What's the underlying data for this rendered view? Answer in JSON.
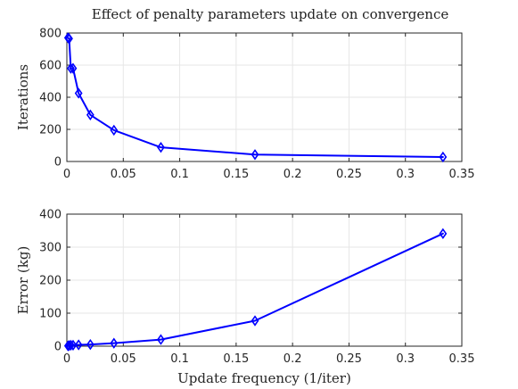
{
  "figure": {
    "title": "Effect of penalty parameters update on convergence"
  },
  "chart_data": [
    {
      "type": "line",
      "title": "Effect of penalty parameters update on convergence",
      "xlabel": "",
      "ylabel": "Iterations",
      "xlim": [
        0,
        0.35
      ],
      "ylim": [
        0,
        800
      ],
      "x_ticks": [
        0,
        0.05,
        0.1,
        0.15,
        0.2,
        0.25,
        0.3,
        0.35
      ],
      "x_tick_labels": [
        "0",
        "0.05",
        "0.1",
        "0.15",
        "0.2",
        "0.25",
        "0.3",
        "0.35"
      ],
      "y_ticks": [
        0,
        200,
        400,
        600,
        800
      ],
      "y_tick_labels": [
        "0",
        "200",
        "400",
        "600",
        "800"
      ],
      "grid": true,
      "series": [
        {
          "color": "#0000ff",
          "marker": "diamond",
          "x": [
            0.001,
            0.002,
            0.0035,
            0.0055,
            0.0104,
            0.0208,
            0.0417,
            0.0833,
            0.1667,
            0.3333
          ],
          "y": [
            770,
            765,
            580,
            580,
            425,
            290,
            195,
            88,
            43,
            28
          ]
        }
      ]
    },
    {
      "type": "line",
      "title": "",
      "xlabel": "Update frequency (1/iter)",
      "ylabel": "Error (kg)",
      "xlim": [
        0,
        0.35
      ],
      "ylim": [
        0,
        400
      ],
      "x_ticks": [
        0,
        0.05,
        0.1,
        0.15,
        0.2,
        0.25,
        0.3,
        0.35
      ],
      "x_tick_labels": [
        "0",
        "0.05",
        "0.1",
        "0.15",
        "0.2",
        "0.25",
        "0.3",
        "0.35"
      ],
      "y_ticks": [
        0,
        100,
        200,
        300,
        400
      ],
      "y_tick_labels": [
        "0",
        "100",
        "200",
        "300",
        "400"
      ],
      "grid": true,
      "series": [
        {
          "color": "#0000ff",
          "marker": "diamond",
          "x": [
            0.001,
            0.002,
            0.0035,
            0.0055,
            0.0104,
            0.0208,
            0.0417,
            0.0833,
            0.1667,
            0.3333
          ],
          "y": [
            1,
            2,
            3,
            3,
            4,
            5,
            9,
            20,
            77,
            341
          ]
        }
      ]
    }
  ]
}
